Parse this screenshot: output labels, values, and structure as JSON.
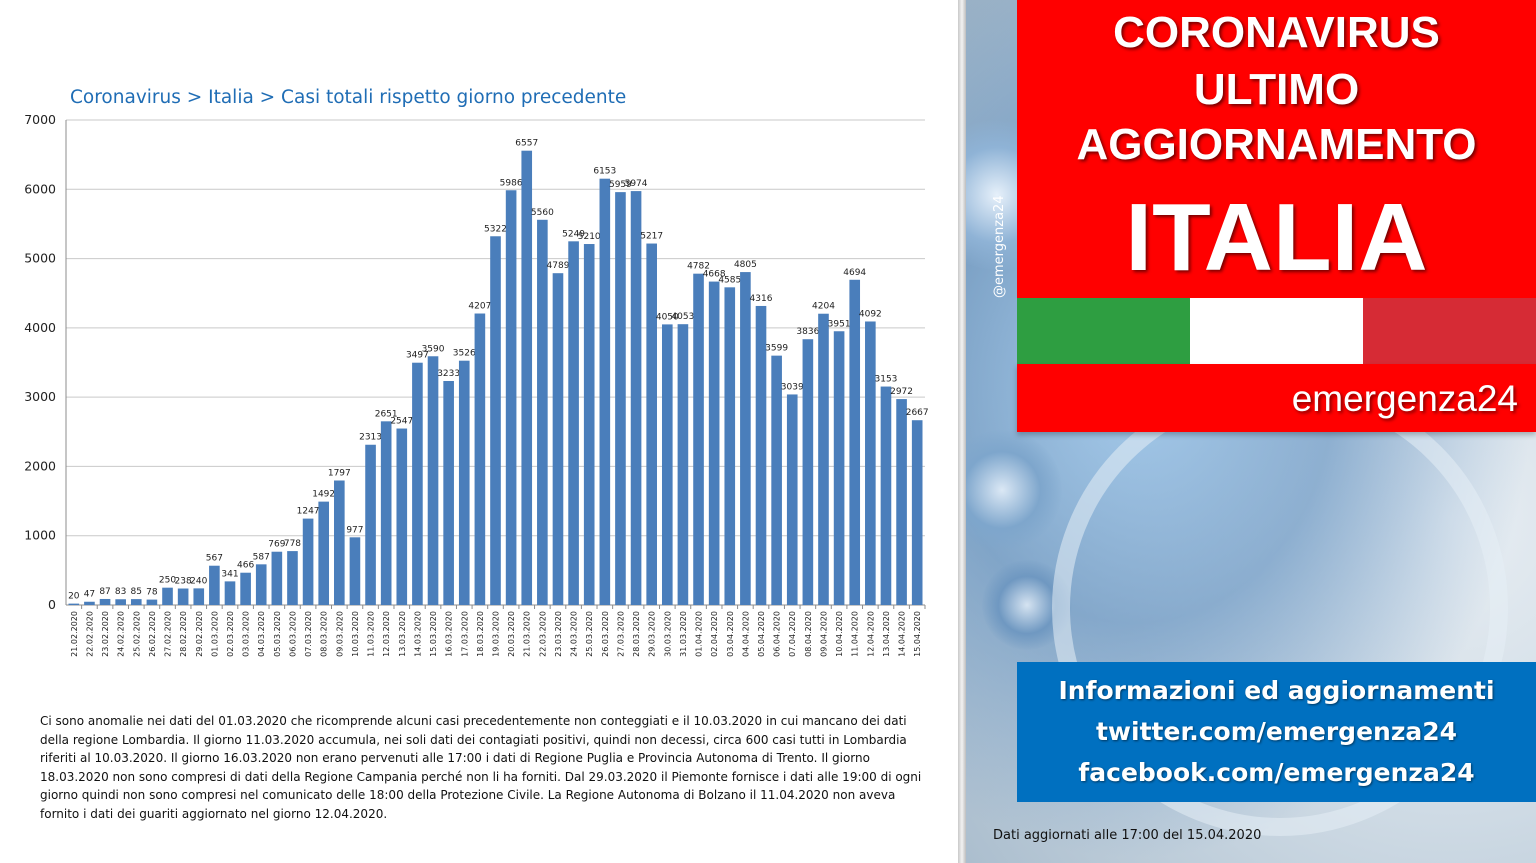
{
  "chart_data": {
    "type": "bar",
    "title": "Coronavirus > Italia > Casi totali rispetto giorno precedente",
    "xlabel": "",
    "ylabel": "",
    "ylim": [
      0,
      7000
    ],
    "yticks": [
      0,
      1000,
      2000,
      3000,
      4000,
      5000,
      6000,
      7000
    ],
    "grid": true,
    "bar_color": "#4a7ebb",
    "categories": [
      "21.02.2020",
      "22.02.2020",
      "23.02.2020",
      "24.02.2020",
      "25.02.2020",
      "26.02.2020",
      "27.02.2020",
      "28.02.2020",
      "29.02.2020",
      "01.03.2020",
      "02.03.2020",
      "03.03.2020",
      "04.03.2020",
      "05.03.2020",
      "06.03.2020",
      "07.03.2020",
      "08.03.2020",
      "09.03.2020",
      "10.03.2020",
      "11.03.2020",
      "12.03.2020",
      "13.03.2020",
      "14.03.2020",
      "15.03.2020",
      "16.03.2020",
      "17.03.2020",
      "18.03.2020",
      "19.03.2020",
      "20.03.2020",
      "21.03.2020",
      "22.03.2020",
      "23.03.2020",
      "24.03.2020",
      "25.03.2020",
      "26.03.2020",
      "27.03.2020",
      "28.03.2020",
      "29.03.2020",
      "30.03.2020",
      "31.03.2020",
      "01.04.2020",
      "02.04.2020",
      "03.04.2020",
      "04.04.2020",
      "05.04.2020",
      "06.04.2020",
      "07.04.2020",
      "08.04.2020",
      "09.04.2020",
      "10.04.2020",
      "11.04.2020",
      "12.04.2020",
      "13.04.2020",
      "14.04.2020",
      "15.04.2020"
    ],
    "values": [
      20,
      47,
      87,
      83,
      85,
      78,
      250,
      238,
      240,
      567,
      341,
      466,
      587,
      769,
      778,
      1247,
      1492,
      1797,
      977,
      2313,
      2651,
      2547,
      3497,
      3590,
      3233,
      3526,
      4207,
      5322,
      5986,
      6557,
      5560,
      4789,
      5249,
      5210,
      6153,
      5959,
      5974,
      5217,
      4050,
      4053,
      4782,
      4668,
      4585,
      4805,
      4316,
      3599,
      3039,
      3836,
      4204,
      3951,
      4694,
      4092,
      3153,
      2972,
      2667
    ]
  },
  "note": "Ci sono anomalie nei dati del 01.03.2020  che ricomprende alcuni casi precedentemente non conteggiati e il 10.03.2020  in cui mancano dei dati della regione Lombardia. Il giorno 11.03.2020   accumula,  nei soli dati dei contagiati positivi, quindi non decessi, circa 600  casi tutti in Lombardia riferiti al 10.03.2020.  Il giorno 16.03.2020  non erano pervenuti alle 17:00  i dati di Regione Puglia e Provincia Autonoma di Trento. Il giorno 18.03.2020  non sono compresi di dati della Regione Campania perché non li ha forniti. Dal 29.03.2020  il Piemonte fornisce i dati alle 19:00  di ogni giorno quindi non sono compresi nel comunicato delle 18:00  della Protezione Civile. La Regione Autonoma di Bolzano il 11.04.2020  non aveva fornito i dati dei guariti aggiornato nel giorno 12.04.2020.",
  "banner": {
    "line1": "CORONAVIRUS",
    "line2": "ULTIMO",
    "line3": "AGGIORNAMENTO",
    "line4": "ITALIA",
    "brand": "emergenza24",
    "handle": "@emergenza24"
  },
  "flag_colors": [
    "#2e9e41",
    "#ffffff",
    "#d62b35"
  ],
  "info": {
    "line1": "Informazioni ed aggiornamenti",
    "line2": "twitter.com/emergenza24",
    "line3": "facebook.com/emergenza24"
  },
  "update_note": "Dati aggiornati alle 17:00 del 15.04.2020"
}
